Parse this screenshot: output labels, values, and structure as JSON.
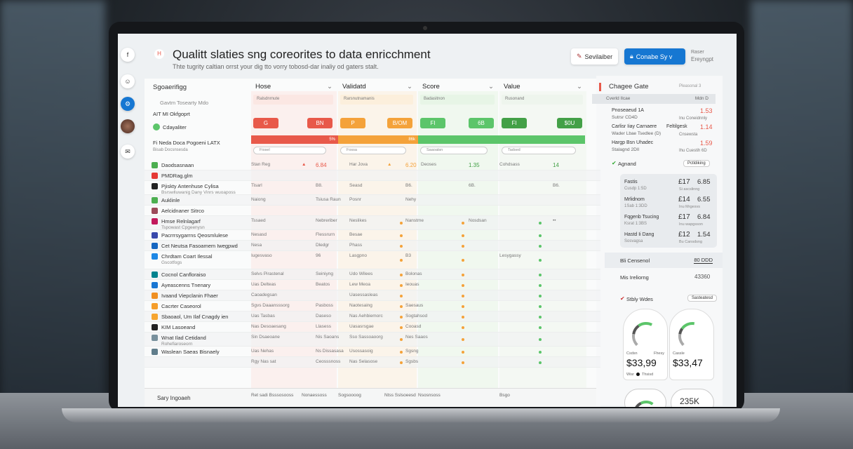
{
  "header": {
    "title": "Qualitt slaties sng coreorites to data enricchment",
    "subtitle": "Thte tugrity caltian orrst your dig tto vorry tobosd-dar inaliy od gaters stalt.",
    "btn_secondary": "Sevilaiber",
    "btn_primary": "Conabe Sy v",
    "user_line1": "Raser",
    "user_line2": "Ereyngpt",
    "logo_icon": "H"
  },
  "rail": [
    {
      "icon": "facebook-icon",
      "glyph": "f"
    },
    {
      "icon": "user-icon",
      "glyph": "☺"
    },
    {
      "icon": "settings-icon",
      "glyph": "⚙"
    },
    {
      "icon": "avatar",
      "glyph": ""
    },
    {
      "icon": "chat-icon",
      "glyph": "✉"
    }
  ],
  "colors": {
    "red": "#e8594a",
    "orange": "#f4a23a",
    "green": "#5cc56a",
    "dkgreen": "#43a047",
    "blue": "#1677d2"
  },
  "table": {
    "label_header": "Sgoaerifigg",
    "columns": [
      {
        "label": "Hose",
        "filter": "Ralsdnrnute",
        "chip_left": "G",
        "chip_right": "BN",
        "bar": "5%",
        "pill": "Fiosel"
      },
      {
        "label": "Validatd",
        "filter": "Rarsnutnamanis",
        "chip_left": "P",
        "chip_right": "B/OM",
        "bar": "86k",
        "pill": "Fossa"
      },
      {
        "label": "Score",
        "filter": "Badasitnon",
        "chip_left": "FI",
        "chip_right": "6B",
        "bar": "",
        "pill": "Saaoatsn"
      },
      {
        "label": "Value",
        "filter": "Rusonand",
        "chip_left": "FI",
        "chip_right": "$0U",
        "bar": "",
        "pill": "Tadsed"
      }
    ],
    "top_rows": [
      "Gavtm Tosearty Mdo",
      "AIT MI Okfgoprt",
      "Cdayaliter",
      "Fi Neda Doca Pogoeni LATX",
      "Bisab Docsnsesda"
    ],
    "rows": [
      {
        "name": "Daodsasnaan",
        "color": "#4caf50",
        "cells": [
          "Stan Reg",
          "▲",
          "6.84",
          "Har Jova",
          "▲",
          "6.20",
          "Deoses",
          "1.35",
          "Cohdsass",
          "14"
        ]
      },
      {
        "name": "PMDRag.glm",
        "color": "#e53935",
        "cells": [
          "",
          "",
          "",
          "",
          "",
          "",
          "",
          "",
          "",
          ""
        ]
      },
      {
        "name": "Pjiskty Antenhuse Cylisa",
        "sub": "Bsrswlluwanig Dany Vinrs wuoaposs",
        "color": "#222",
        "cells": [
          "Tisarl",
          "",
          "B8.",
          "Seasd",
          "",
          "B6.",
          "",
          "6B.",
          "",
          "B6."
        ]
      },
      {
        "name": "Auklinle",
        "color": "#4caf50",
        "cells": [
          "Naiong",
          "",
          "Tsiusa Raun",
          "Posnr",
          "",
          "Nehy",
          "",
          "",
          "",
          ""
        ]
      },
      {
        "name": "Aelcidnaner Sitrco",
        "color": "#9c4a5a",
        "cells": [
          "",
          "",
          "",
          "",
          "",
          "",
          "",
          "",
          "",
          ""
        ]
      },
      {
        "name": "Hmse Relnlagarf",
        "sub": "Tspowast Cpgeenysn",
        "color": "#c2185b",
        "cells": [
          "Tssaed",
          "",
          "Nebreriber",
          "Neslikes",
          "",
          "Nanstme",
          "",
          "Nosdsan",
          "",
          "••"
        ]
      },
      {
        "name": "Pacrrrsygarrns Qeosmlulese",
        "color": "#3949ab",
        "cells": [
          "Nesasd",
          "",
          "Flessrurn",
          "Besae",
          "",
          "",
          "",
          "",
          "",
          ""
        ]
      },
      {
        "name": "Cet Neutsa Fasoamem Iwegpwd",
        "color": "#1565c0",
        "cells": [
          "Nesa",
          "",
          "Dledgr",
          "Phass",
          "",
          "",
          "",
          "",
          "",
          ""
        ]
      },
      {
        "name": "Chrdtam Coart Ilessal",
        "sub": "Gscotfogs",
        "color": "#1e88e5",
        "cells": [
          "Iugesvaso",
          "",
          "96",
          "Lasgpno",
          "",
          "B3",
          "",
          "",
          "Lesygassy",
          ""
        ]
      },
      {
        "name": "Cocnol Canfloraiso",
        "color": "#00838f",
        "cells": [
          "Selvs Pirastenal",
          "",
          "Seiniyng",
          "Udo Wilees",
          "",
          "Bolonas",
          "",
          "",
          "",
          ""
        ]
      },
      {
        "name": "Ayeascenns Tnenary",
        "color": "#1976d2",
        "cells": [
          "Uas Delteas",
          "",
          "Beatos",
          "Lew Meoa",
          "",
          "Ieouas",
          "",
          "",
          "",
          ""
        ]
      },
      {
        "name": "Ivaand Viepclanin Fhaer",
        "color": "#ef8f22",
        "cells": [
          "Caoadegsan",
          "",
          "",
          "Uasessasleas",
          "",
          "",
          "",
          "",
          "",
          ""
        ]
      },
      {
        "name": "Cacrter Caseorol",
        "color": "#f59e2b",
        "cells": [
          "Sgvs Daaansssorg",
          "",
          "Pasboss",
          "Naotesaing",
          "",
          "Saesaus",
          "",
          "",
          "",
          ""
        ]
      },
      {
        "name": "Sbaoaol, Um Ilaf Cnagdy ien",
        "color": "#f6a530",
        "cells": [
          "Uas Tasbas",
          "",
          "Daseso",
          "Nas Aehbiemorc",
          "",
          "Sogtahsod",
          "",
          "",
          "",
          ""
        ]
      },
      {
        "name": "KIM Lasoeand",
        "color": "#222",
        "cells": [
          "Nas Desoaesang",
          "",
          "Llasess",
          "Uasasrsgae",
          "",
          "Cooasd",
          "",
          "",
          "",
          ""
        ]
      },
      {
        "name": "Wnat Ilad Cetidand",
        "sub": "Rohefiaroseorn",
        "color": "#78909c",
        "cells": [
          "Sin Dsaeoane",
          "",
          "Nis Saoans",
          "Sso Sassoaoorg",
          "",
          "Nes Saaos",
          "",
          "",
          "",
          ""
        ]
      },
      {
        "name": "Waslean Saeas Bisnaely",
        "color": "#607d8b",
        "cells": [
          "Uas Nehas",
          "",
          "Ns Dissasasa",
          "Usossasoig",
          "",
          "Sgsng",
          "",
          "",
          "",
          ""
        ]
      },
      {
        "name": "",
        "color": "",
        "cells": [
          "Rgy Nas sat",
          "",
          "Ceosssnoss",
          "Nas Selasose",
          "",
          "Sgsbs",
          "",
          "",
          "",
          ""
        ]
      }
    ],
    "footer": {
      "name": "Sary Ingoaeh",
      "cells": [
        "Ret sadi Bsssosooss",
        "Nonaessoss",
        "Sogsoooog",
        "Ntss Sslsoeesd",
        "Nsosnsoss",
        "Bsgo"
      ]
    }
  },
  "panel": {
    "title": "Chagee Gate",
    "badge": "Pleasonal 3",
    "sub_left": "Cverld Ilcae",
    "sub_right": "Mdn D",
    "changes": [
      {
        "name": "Pnoseaeud 1A",
        "sub": "Sutrsr CD4D",
        "mid": "",
        "value": "1.53",
        "note": "Inu Coneidnnly"
      },
      {
        "name": "Carlisr Iiay Carnaere",
        "sub": "Wader Lbae Tsedlee (D)",
        "mid": "Feltilgesk",
        "value": "1.14",
        "note": "Cnsewsta"
      },
      {
        "name": "Hargp Bsn Uhadec",
        "sub": "Stalagnd 2DII",
        "mid": "",
        "value": "1.59",
        "note": "Ihu Cuestih 6D"
      }
    ],
    "agreement": {
      "title": "Agnand",
      "pill": "Pctldiking",
      "rows": [
        {
          "name": "Fastis",
          "sub": "Cusdp 1:5D",
          "a": "£17",
          "b": "6.85",
          "note": "Si ascslinng"
        },
        {
          "name": "Mrlidnom",
          "sub": "1Sab 1:3DD",
          "a": "£14",
          "b": "6.55",
          "note": "Inu Mrgesvs"
        },
        {
          "name": "Fqgenb Tsucing",
          "sub": "Ksrat 1:3BS",
          "a": "£17",
          "b": "6.84",
          "note": "Inu wapgsson"
        },
        {
          "name": "Hastd Ii Dang",
          "sub": "Sosvagsa",
          "a": "£12",
          "b": "1.54",
          "note": "Bu Cansdsng"
        }
      ]
    },
    "control": {
      "label": "Bli Censenol",
      "value": "80 DDD"
    },
    "billing": {
      "label": "Mis Ireliorng",
      "value": "43360"
    },
    "stability": {
      "title": "Stbly Wdes",
      "pill": "Sasteatesd",
      "gauges": [
        {
          "label": "Csdsn",
          "label2": "Fhesy",
          "value": "$33,99",
          "progress": 0.55,
          "legend": "Wisr",
          "legend2": "Thsisd"
        },
        {
          "label": "Cassle",
          "value": "$33,47",
          "progress": 0.45
        }
      ],
      "bottom_value": "235K",
      "bottom_progress": 0.6
    }
  }
}
